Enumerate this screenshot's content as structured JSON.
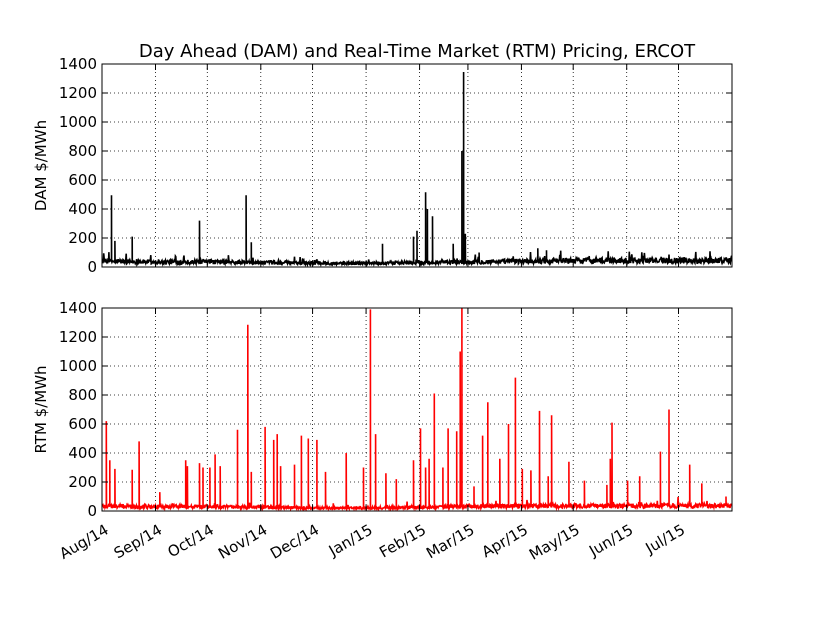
{
  "chart_data": [
    {
      "type": "line",
      "title": "Day Ahead (DAM) and Real-Time Market (RTM) Pricing, ERCOT",
      "ylabel": "DAM $/MWh",
      "ylim": [
        0,
        1400
      ],
      "yticks": [
        0,
        200,
        400,
        600,
        800,
        1000,
        1200,
        1400
      ],
      "xlim": [
        "2014-08-01",
        "2015-08-01"
      ],
      "x_tick_labels": [
        "Aug/14",
        "Sep/14",
        "Oct/14",
        "Nov/14",
        "Dec/14",
        "Jan/15",
        "Feb/15",
        "Mar/15",
        "Apr/15",
        "May/15",
        "Jun/15",
        "Jul/15"
      ],
      "x_tick_dates": [
        "2014-08-01",
        "2014-09-01",
        "2014-10-01",
        "2014-11-01",
        "2014-12-01",
        "2015-01-01",
        "2015-02-01",
        "2015-03-01",
        "2015-04-01",
        "2015-05-01",
        "2015-06-01",
        "2015-07-01"
      ],
      "grid": true,
      "color": "#000000",
      "baseline": [
        [
          "2014-08-01",
          40
        ],
        [
          "2014-09-01",
          35
        ],
        [
          "2014-10-01",
          35
        ],
        [
          "2014-11-01",
          30
        ],
        [
          "2014-12-01",
          28
        ],
        [
          "2015-01-01",
          25
        ],
        [
          "2015-02-01",
          30
        ],
        [
          "2015-03-01",
          35
        ],
        [
          "2015-04-01",
          40
        ],
        [
          "2015-05-01",
          45
        ],
        [
          "2015-06-01",
          45
        ],
        [
          "2015-07-01",
          45
        ],
        [
          "2015-08-01",
          45
        ]
      ],
      "spikes": [
        [
          "2014-08-06",
          495
        ],
        [
          "2014-08-08",
          180
        ],
        [
          "2014-08-18",
          210
        ],
        [
          "2014-09-26",
          320
        ],
        [
          "2014-10-23",
          495
        ],
        [
          "2014-10-26",
          170
        ],
        [
          "2015-01-10",
          160
        ],
        [
          "2015-01-28",
          210
        ],
        [
          "2015-01-30",
          250
        ],
        [
          "2015-02-04",
          515
        ],
        [
          "2015-02-05",
          400
        ],
        [
          "2015-02-08",
          350
        ],
        [
          "2015-02-20",
          160
        ],
        [
          "2015-02-25",
          800
        ],
        [
          "2015-02-26",
          1345
        ],
        [
          "2015-02-27",
          230
        ],
        [
          "2015-03-07",
          100
        ],
        [
          "2015-04-10",
          130
        ],
        [
          "2015-04-15",
          115
        ]
      ]
    },
    {
      "type": "line",
      "title": "",
      "ylabel": "RTM $/MWh",
      "ylim": [
        0,
        1400
      ],
      "yticks": [
        0,
        200,
        400,
        600,
        800,
        1000,
        1200,
        1400
      ],
      "xlim": [
        "2014-08-01",
        "2015-08-01"
      ],
      "x_tick_labels": [
        "Aug/14",
        "Sep/14",
        "Oct/14",
        "Nov/14",
        "Dec/14",
        "Jan/15",
        "Feb/15",
        "Mar/15",
        "Apr/15",
        "May/15",
        "Jun/15",
        "Jul/15"
      ],
      "x_tick_dates": [
        "2014-08-01",
        "2014-09-01",
        "2014-10-01",
        "2014-11-01",
        "2014-12-01",
        "2015-01-01",
        "2015-02-01",
        "2015-03-01",
        "2015-04-01",
        "2015-05-01",
        "2015-06-01",
        "2015-07-01"
      ],
      "grid": true,
      "color": "#ff0000",
      "baseline": [
        [
          "2014-08-01",
          35
        ],
        [
          "2014-09-01",
          30
        ],
        [
          "2014-10-01",
          30
        ],
        [
          "2014-11-01",
          25
        ],
        [
          "2014-12-01",
          22
        ],
        [
          "2015-01-01",
          20
        ],
        [
          "2015-02-01",
          25
        ],
        [
          "2015-03-01",
          30
        ],
        [
          "2015-04-01",
          35
        ],
        [
          "2015-05-01",
          35
        ],
        [
          "2015-06-01",
          35
        ],
        [
          "2015-07-01",
          35
        ],
        [
          "2015-08-01",
          35
        ]
      ],
      "spikes": [
        [
          "2014-08-03",
          620
        ],
        [
          "2014-08-05",
          350
        ],
        [
          "2014-08-08",
          290
        ],
        [
          "2014-08-18",
          285
        ],
        [
          "2014-08-22",
          480
        ],
        [
          "2014-09-03",
          130
        ],
        [
          "2014-09-18",
          350
        ],
        [
          "2014-09-19",
          310
        ],
        [
          "2014-09-26",
          330
        ],
        [
          "2014-09-28",
          300
        ],
        [
          "2014-10-02",
          300
        ],
        [
          "2014-10-05",
          390
        ],
        [
          "2014-10-08",
          310
        ],
        [
          "2014-10-18",
          560
        ],
        [
          "2014-10-24",
          1285
        ],
        [
          "2014-10-26",
          270
        ],
        [
          "2014-11-03",
          580
        ],
        [
          "2014-11-08",
          490
        ],
        [
          "2014-11-10",
          530
        ],
        [
          "2014-11-12",
          310
        ],
        [
          "2014-11-20",
          320
        ],
        [
          "2014-11-24",
          520
        ],
        [
          "2014-11-28",
          500
        ],
        [
          "2014-12-03",
          490
        ],
        [
          "2014-12-08",
          270
        ],
        [
          "2014-12-20",
          400
        ],
        [
          "2014-12-30",
          300
        ],
        [
          "2015-01-03",
          1390
        ],
        [
          "2015-01-06",
          530
        ],
        [
          "2015-01-12",
          260
        ],
        [
          "2015-01-18",
          220
        ],
        [
          "2015-01-28",
          350
        ],
        [
          "2015-02-01",
          570
        ],
        [
          "2015-02-04",
          300
        ],
        [
          "2015-02-06",
          360
        ],
        [
          "2015-02-09",
          810
        ],
        [
          "2015-02-14",
          300
        ],
        [
          "2015-02-17",
          570
        ],
        [
          "2015-02-22",
          550
        ],
        [
          "2015-02-24",
          1100
        ],
        [
          "2015-02-25",
          1400
        ],
        [
          "2015-03-04",
          170
        ],
        [
          "2015-03-09",
          520
        ],
        [
          "2015-03-12",
          750
        ],
        [
          "2015-03-19",
          360
        ],
        [
          "2015-03-24",
          600
        ],
        [
          "2015-03-28",
          920
        ],
        [
          "2015-04-01",
          290
        ],
        [
          "2015-04-06",
          280
        ],
        [
          "2015-04-11",
          690
        ],
        [
          "2015-04-16",
          240
        ],
        [
          "2015-04-18",
          660
        ],
        [
          "2015-04-28",
          340
        ],
        [
          "2015-05-07",
          210
        ],
        [
          "2015-05-20",
          180
        ],
        [
          "2015-05-22",
          360
        ],
        [
          "2015-05-23",
          610
        ],
        [
          "2015-06-01",
          210
        ],
        [
          "2015-06-08",
          240
        ],
        [
          "2015-06-20",
          410
        ],
        [
          "2015-06-25",
          700
        ],
        [
          "2015-07-07",
          320
        ],
        [
          "2015-07-14",
          190
        ],
        [
          "2015-07-28",
          100
        ]
      ]
    }
  ]
}
